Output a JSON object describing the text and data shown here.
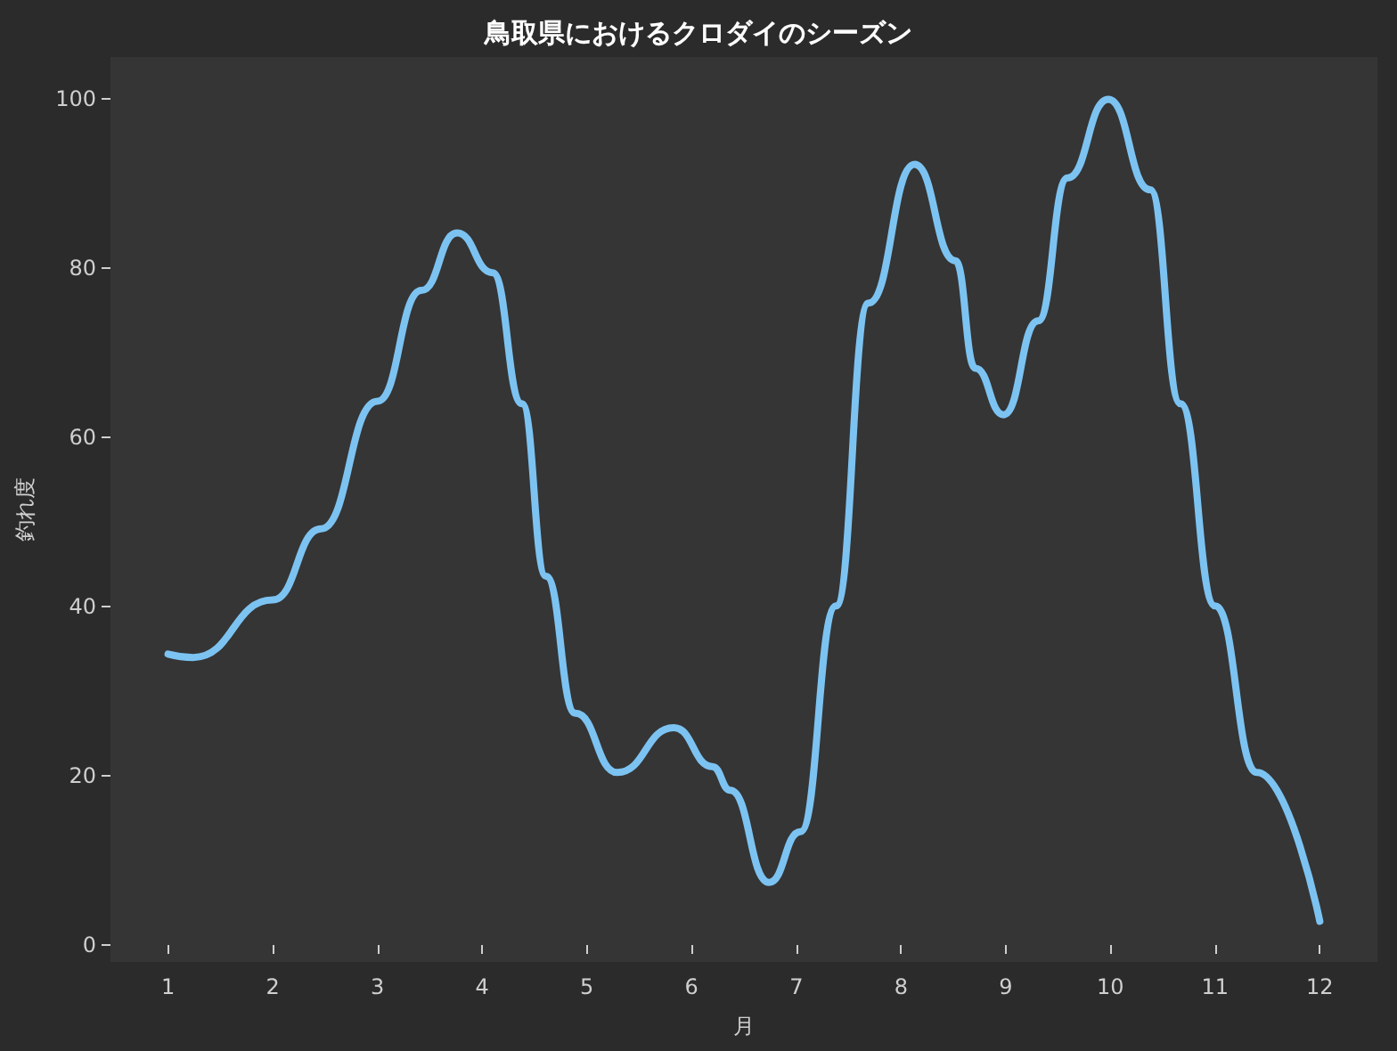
{
  "chart_data": {
    "type": "line",
    "title": "鳥取県におけるクロダイのシーズン",
    "xlabel": "月",
    "ylabel": "釣れ度",
    "x": [
      1,
      1.24,
      2,
      2.46,
      3,
      3.42,
      3.76,
      4.1,
      4.38,
      4.61,
      4.89,
      5.29,
      5.83,
      6.2,
      6.37,
      6.74,
      7.04,
      7.38,
      7.69,
      8.13,
      8.52,
      8.71,
      8.98,
      9.31,
      9.59,
      9.98,
      10.38,
      10.67,
      11,
      11.4,
      12
    ],
    "series": [
      {
        "color": "#7cc3f2",
        "values": [
          34.4,
          34,
          40.8,
          49.2,
          64.3,
          77.4,
          84.2,
          79.5,
          64,
          43.6,
          27.4,
          20.4,
          25.7,
          21.1,
          18.3,
          7.4,
          13.4,
          40.1,
          75.9,
          92.3,
          80.9,
          68.2,
          62.7,
          73.8,
          90.7,
          100,
          89.3,
          64,
          40.1,
          20.4,
          2.8
        ]
      }
    ],
    "xlim": [
      0.45,
      12.55
    ],
    "xticks": [
      1,
      2,
      3,
      4,
      5,
      6,
      7,
      8,
      9,
      10,
      11,
      12
    ],
    "ylim": [
      -2,
      105
    ],
    "yticks": [
      0,
      20,
      40,
      60,
      80,
      100
    ],
    "grid": false,
    "marker": "none",
    "line_style": "solid"
  }
}
